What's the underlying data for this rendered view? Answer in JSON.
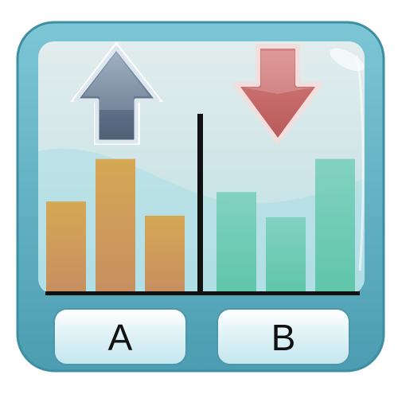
{
  "icon": {
    "name": "ab-testing-app-icon",
    "colors": {
      "frame": "#5fb4c6",
      "frame_dark": "#3f8fa3",
      "screen_top": "#dfeaea",
      "screen_bottom": "#bfe3e6",
      "bars_left": "#c9974f",
      "bars_right": "#6cc9b1",
      "arrow_up": "#62758d",
      "arrow_down": "#c77474",
      "baseline": "#111111",
      "button_face": "#d5eef3"
    }
  },
  "arrows": {
    "left": "up-arrow-icon",
    "right": "down-arrow-icon"
  },
  "groups": {
    "left": {
      "label": "A",
      "bar_levels": [
        0.57,
        0.84,
        0.48
      ]
    },
    "right": {
      "label": "B",
      "bar_levels": [
        0.63,
        0.47,
        0.84
      ]
    }
  }
}
